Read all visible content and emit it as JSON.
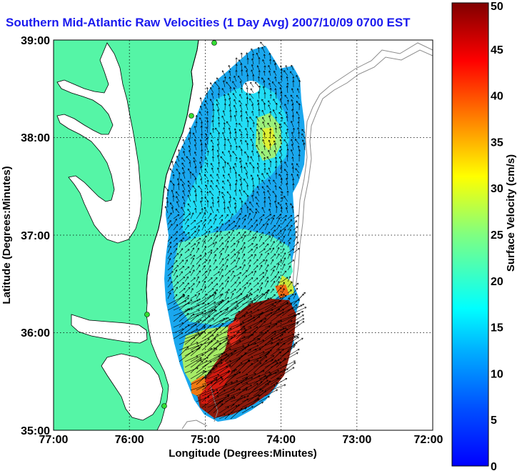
{
  "title": "Southern Mid-Atlantic Raw Velocities (1 Day Avg) 2007/10/09 0700 EST",
  "xlabel": "Longitude (Degrees:Minutes)",
  "ylabel": "Latitude (Degrees:Minutes)",
  "x_ticks": [
    "77:00",
    "76:00",
    "75:00",
    "74:00",
    "73:00",
    "72:00"
  ],
  "y_ticks": [
    "39:00",
    "38:00",
    "37:00",
    "36:00",
    "35:00"
  ],
  "colorbar": {
    "label": "Surface Velocity (cm/s)",
    "ticks": [
      "0",
      "5",
      "10",
      "15",
      "20",
      "25",
      "30",
      "35",
      "40",
      "45",
      "50"
    ],
    "min": 0,
    "max": 50
  },
  "colors": {
    "land": "#55f5a6",
    "water": "#ffffff",
    "title": "#1a1aee",
    "coastline": "#000000",
    "bathymetry": "#8a8a8a",
    "station": "#33dd33"
  }
}
